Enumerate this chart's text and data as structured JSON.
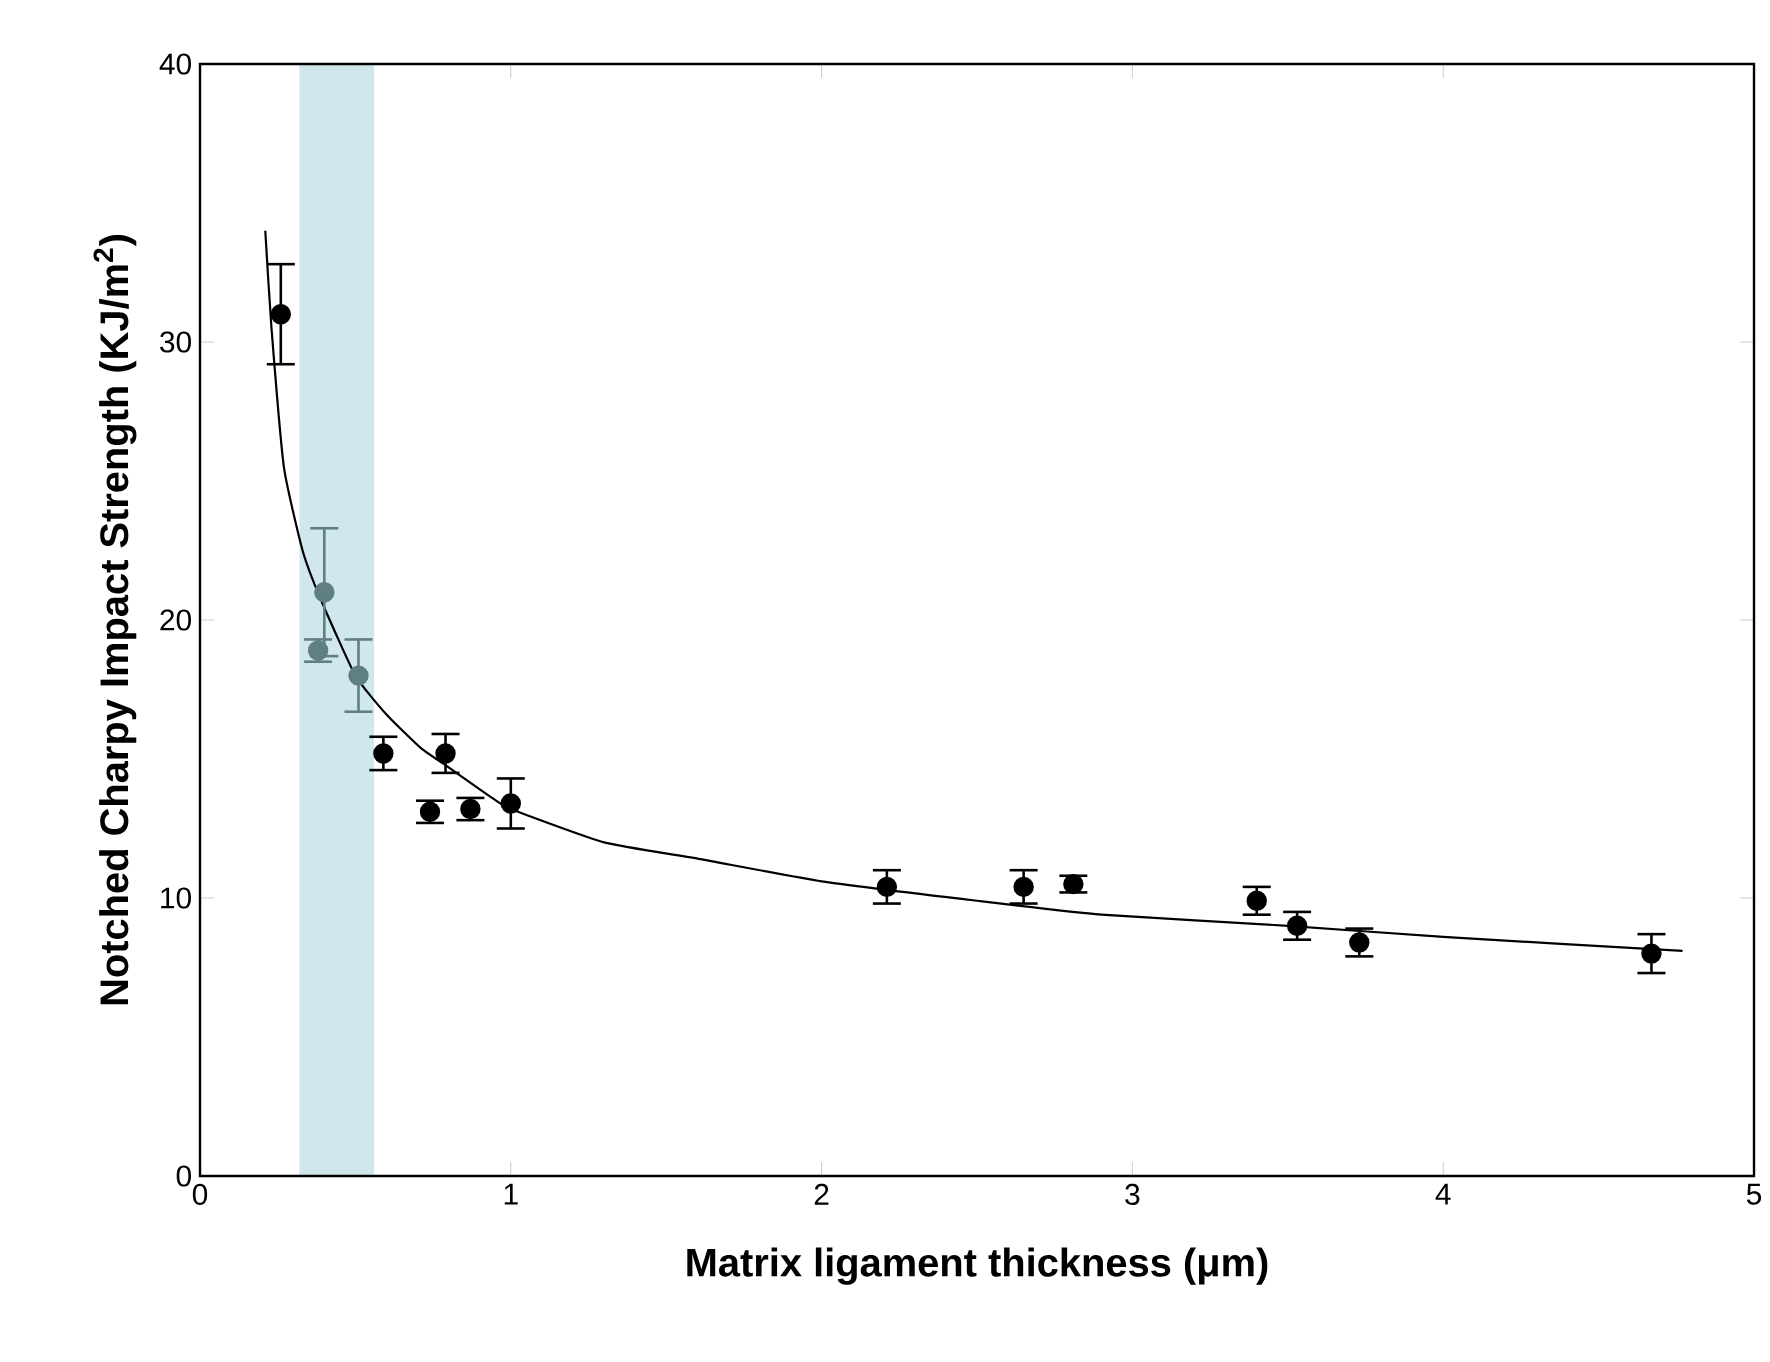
{
  "chart_data": {
    "type": "scatter",
    "xlabel": "Matrix ligament thickness (μm)",
    "ylabel": "Notched Charpy Impact Strength (KJ/m$^{2}$)",
    "xlim": [
      0,
      5
    ],
    "ylim": [
      0,
      40
    ],
    "xticks": [
      0,
      1,
      2,
      3,
      4,
      5
    ],
    "yticks": [
      0,
      10,
      20,
      30,
      40
    ],
    "grid": false,
    "bands": [
      {
        "axis": "x",
        "from": 0.32,
        "to": 0.56,
        "color": "#d0e7ee"
      }
    ],
    "series": [
      {
        "type": "line",
        "marker": "none",
        "color": "#000000",
        "x": [
          0.21,
          0.23,
          0.27,
          0.33,
          0.39,
          0.5,
          0.6,
          0.71,
          0.8,
          0.94,
          1.0,
          1.3,
          1.61,
          2.0,
          2.5,
          2.9,
          3.5,
          4.0,
          4.77
        ],
        "values": [
          34.0,
          30.5,
          25.5,
          22.5,
          20.7,
          18.0,
          16.6,
          15.4,
          14.7,
          13.6,
          13.2,
          12.0,
          11.4,
          10.6,
          9.9,
          9.4,
          9.0,
          8.6,
          8.1
        ]
      },
      {
        "marker": "circle",
        "color": "#5f7f80",
        "x": [
          0.4,
          0.38,
          0.51
        ],
        "values": [
          21.0,
          18.9,
          18.0
        ],
        "errors": [
          2.3,
          0.4,
          1.3
        ]
      },
      {
        "marker": "circle",
        "color": "#000000",
        "x": [
          0.26,
          0.59,
          0.74,
          0.79,
          0.87,
          1.0,
          2.21,
          2.65,
          2.81,
          3.4,
          3.53,
          3.73,
          4.67
        ],
        "values": [
          31.0,
          15.2,
          13.1,
          15.2,
          13.2,
          13.4,
          10.4,
          10.4,
          10.5,
          9.9,
          9.0,
          8.4,
          8.0
        ],
        "errors": [
          1.8,
          0.6,
          0.4,
          0.7,
          0.4,
          0.9,
          0.6,
          0.6,
          0.3,
          0.5,
          0.5,
          0.5,
          0.7
        ]
      }
    ]
  }
}
